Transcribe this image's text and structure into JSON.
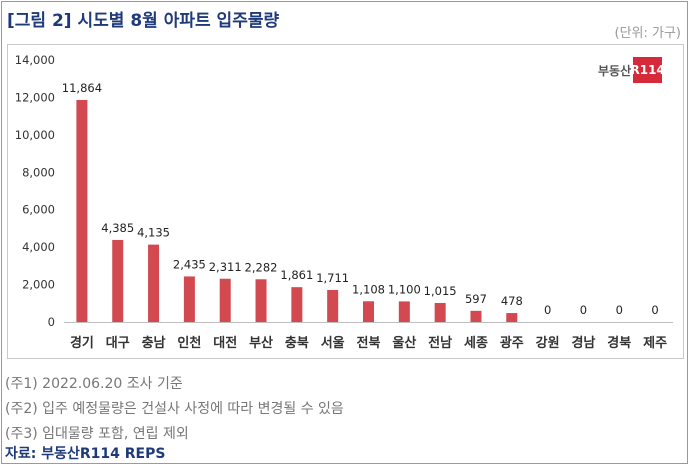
{
  "title": "[그림 2] 시도별 8월 아파트 입주물량",
  "unit": "(단위: 가구)",
  "logo": {
    "text": "부동산",
    "box": "R114"
  },
  "notes": [
    "(주1) 2022.06.20 조사 기준",
    "(주2) 입주 예정물량은 건설사 사정에 따라 변경될 수 있음",
    "(주3) 임대물량 포함, 연립 제외"
  ],
  "source": "자료: 부동산R114 REPS",
  "colors": {
    "bar": "#d2494f",
    "title": "#1f3a7a"
  },
  "chart_data": {
    "type": "bar",
    "categories": [
      "경기",
      "대구",
      "충남",
      "인천",
      "대전",
      "부산",
      "충북",
      "서울",
      "전북",
      "울산",
      "전남",
      "세종",
      "광주",
      "강원",
      "경남",
      "경북",
      "제주"
    ],
    "values": [
      11864,
      4385,
      4135,
      2435,
      2311,
      2282,
      1861,
      1711,
      1108,
      1100,
      1015,
      597,
      478,
      0,
      0,
      0,
      0
    ],
    "data_labels": [
      "11,864",
      "4,385",
      "4,135",
      "2,435",
      "2,311",
      "2,282",
      "1,861",
      "1,711",
      "1,108",
      "1,100",
      "1,015",
      "597",
      "478",
      "0",
      "0",
      "0",
      "0"
    ],
    "yticks": [
      0,
      2000,
      4000,
      6000,
      8000,
      10000,
      12000,
      14000
    ],
    "ytick_labels": [
      "0",
      "2,000",
      "4,000",
      "6,000",
      "8,000",
      "10,000",
      "12,000",
      "14,000"
    ],
    "ylim": [
      0,
      14000
    ],
    "grid": false,
    "legend": "none"
  }
}
